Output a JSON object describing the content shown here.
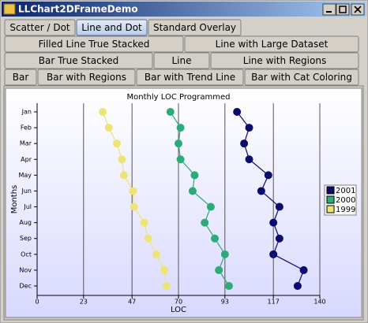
{
  "window": {
    "title": "LLChart2DFrameDemo"
  },
  "tabs": [
    [
      "Scatter / Dot",
      "Line and Dot",
      "Standard Overlay"
    ],
    [
      "Filled Line True Stacked",
      "Line with Large Dataset"
    ],
    [
      "Bar True Stacked",
      "Line",
      "Line with Regions"
    ],
    [
      "Bar",
      "Bar with Regions",
      "Bar with Trend Line",
      "Bar with Cat Coloring"
    ]
  ],
  "selected_tab": [
    0,
    1
  ],
  "chart_data": {
    "type": "line",
    "orientation": "horizontal",
    "title": "Monthly LOC Programmed",
    "xlabel": "LOC",
    "ylabel": "Months",
    "categories": [
      "Jan",
      "Feb",
      "Mar",
      "Apr",
      "May",
      "Jun",
      "Jul",
      "Aug",
      "Sep",
      "Oct",
      "Nov",
      "Dec"
    ],
    "series": [
      {
        "name": "2001",
        "color": "#0b0b6e",
        "values": [
          99,
          105,
          102.5,
          105,
          114.5,
          111,
          120,
          117,
          120,
          117,
          132,
          129
        ]
      },
      {
        "name": "2000",
        "color": "#2eaa78",
        "values": [
          66,
          71,
          70,
          71,
          78,
          77,
          86,
          83,
          88,
          93,
          90,
          95
        ]
      },
      {
        "name": "1999",
        "color": "#ece477",
        "values": [
          32.5,
          35.5,
          39.5,
          42,
          43,
          47.5,
          48,
          53,
          55,
          59,
          63,
          64
        ]
      }
    ],
    "xlim": [
      0,
      140
    ],
    "xticks": [
      0,
      23,
      47,
      70,
      93,
      117,
      140
    ],
    "grid": true,
    "legend": "right"
  }
}
